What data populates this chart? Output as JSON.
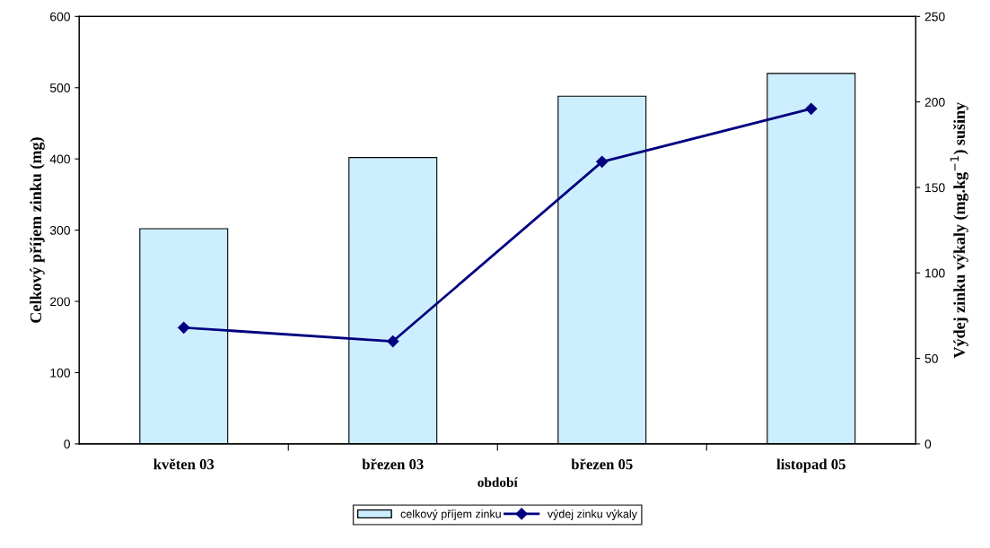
{
  "chart_data": {
    "type": "bar",
    "xlabel": "období",
    "ylabel": "Celkový příjem zinku (mg)",
    "y2label": "Výdej zinku výkaly (mg.kg$^{−1}$) sušiny",
    "categories": [
      "květen 03",
      "březen 03",
      "březen 05",
      "listopad 05"
    ],
    "series": [
      {
        "name": "celkový příjem zinku",
        "color": "#cceeff",
        "values": [
          302,
          402,
          488,
          520
        ]
      },
      {
        "name": "výdej zinku výkaly",
        "type": "line",
        "axis": "y2",
        "color": "#000080",
        "marker": "diamond",
        "values": [
          68,
          60,
          165,
          196
        ]
      }
    ],
    "ylim": [
      0,
      600
    ],
    "yticks": [
      0,
      100,
      200,
      300,
      400,
      500,
      600
    ],
    "y2lim": [
      0,
      250
    ],
    "y2ticks": [
      0,
      50,
      100,
      150,
      200,
      250
    ],
    "grid": false,
    "legend": "bottom"
  }
}
